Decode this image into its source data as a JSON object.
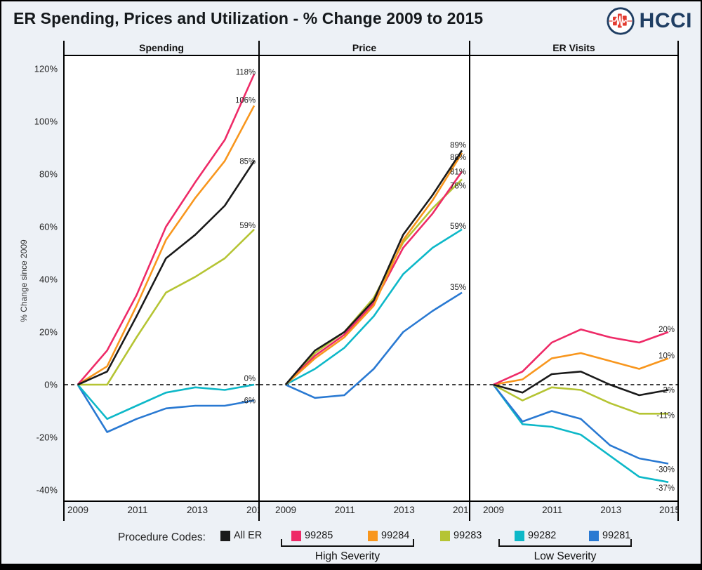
{
  "title": "ER Spending, Prices and Utilization - % Change 2009 to 2015",
  "logo": {
    "text": "HCCI"
  },
  "colors": {
    "all_er": "#1A1A1A",
    "99285": "#EE2A67",
    "99284": "#F8961D",
    "99283": "#B5C433",
    "99282": "#0DB8C8",
    "99281": "#2979D2",
    "navy": "#1F3E63",
    "logo_red": "#E23B30"
  },
  "legend": {
    "heading": "Procedure Codes:",
    "items": [
      {
        "code": "all_er",
        "label": "All ER"
      },
      {
        "code": "99285",
        "label": "99285"
      },
      {
        "code": "99284",
        "label": "99284"
      },
      {
        "code": "99283",
        "label": "99283"
      },
      {
        "code": "99282",
        "label": "99282"
      },
      {
        "code": "99281",
        "label": "99281"
      }
    ],
    "groups": [
      {
        "label": "High Severity",
        "covers": [
          "99285",
          "99284"
        ]
      },
      {
        "label": "Low Severity",
        "covers": [
          "99282",
          "99281"
        ]
      }
    ]
  },
  "chart_data": {
    "type": "line",
    "x": [
      2009,
      2010,
      2011,
      2012,
      2013,
      2014,
      2015
    ],
    "x_tick_labels": [
      "2009",
      "2011",
      "2013",
      "2015"
    ],
    "ylabel": "% Change since 2009",
    "ylim": [
      -44,
      125
    ],
    "yticks": [
      120,
      100,
      80,
      60,
      40,
      20,
      0,
      -20,
      -40
    ],
    "ytick_suffix": "%",
    "zero_line_dashed": true,
    "legend_position": "bottom",
    "panels": [
      {
        "title": "Spending",
        "series": [
          {
            "code": "99281",
            "values": [
              0,
              -18,
              -13,
              -9,
              -8,
              -8,
              -6
            ],
            "end_label": "-6%"
          },
          {
            "code": "99282",
            "values": [
              0,
              -13,
              -8,
              -3,
              -1,
              -2,
              0
            ],
            "end_label": "0%",
            "label_dy": -9
          },
          {
            "code": "99283",
            "values": [
              0,
              0,
              18,
              35,
              41,
              48,
              59
            ],
            "end_label": "59%",
            "label_dy": -6
          },
          {
            "code": "99284",
            "values": [
              0,
              7,
              30,
              55,
              71,
              85,
              106
            ],
            "end_label": "106%",
            "label_dy": -8
          },
          {
            "code": "99285",
            "values": [
              0,
              13,
              34,
              60,
              77,
              93,
              118
            ],
            "end_label": "118%",
            "label_dy": -3
          },
          {
            "code": "all_er",
            "values": [
              0,
              5,
              26,
              48,
              57,
              68,
              85
            ],
            "end_label": "85%"
          }
        ]
      },
      {
        "title": "Price",
        "series": [
          {
            "code": "99281",
            "values": [
              0,
              -5,
              -4,
              6,
              20,
              28,
              35
            ],
            "end_label": "35%",
            "label_dy": -8
          },
          {
            "code": "99282",
            "values": [
              0,
              6,
              14,
              26,
              42,
              52,
              59
            ],
            "end_label": "59%",
            "label_dy": -5
          },
          {
            "code": "99283",
            "values": [
              0,
              12,
              20,
              33,
              54,
              67,
              78
            ],
            "end_label": "78%",
            "label_dy": 9
          },
          {
            "code": "99285",
            "values": [
              0,
              11,
              19,
              31,
              52,
              65,
              81
            ],
            "end_label": "81%"
          },
          {
            "code": "99284",
            "values": [
              0,
              10,
              18,
              30,
              55,
              70,
              88
            ],
            "end_label": "88%",
            "label_dy": 6
          },
          {
            "code": "all_er",
            "values": [
              0,
              13,
              20,
              32,
              57,
              72,
              89
            ],
            "end_label": "89%",
            "label_dy": -8
          }
        ]
      },
      {
        "title": "ER Visits",
        "series": [
          {
            "code": "99282",
            "values": [
              0,
              -15,
              -16,
              -19,
              -27,
              -35,
              -37
            ],
            "end_label": "-37%",
            "label_dy": 8
          },
          {
            "code": "99281",
            "values": [
              0,
              -14,
              -10,
              -13,
              -23,
              -28,
              -30
            ],
            "end_label": "-30%",
            "label_dy": 8
          },
          {
            "code": "99283",
            "values": [
              0,
              -6,
              -1,
              -2,
              -7,
              -11,
              -11
            ],
            "end_label": "-11%",
            "label_dy": 2
          },
          {
            "code": "99284",
            "values": [
              0,
              2,
              10,
              12,
              9,
              6,
              10
            ],
            "end_label": "10%",
            "label_dy": -4
          },
          {
            "code": "99285",
            "values": [
              0,
              5,
              16,
              21,
              18,
              16,
              20
            ],
            "end_label": "20%",
            "label_dy": -4
          },
          {
            "code": "all_er",
            "values": [
              0,
              -3,
              4,
              5,
              0,
              -4,
              -2
            ],
            "end_label": "-2%"
          }
        ]
      }
    ]
  }
}
